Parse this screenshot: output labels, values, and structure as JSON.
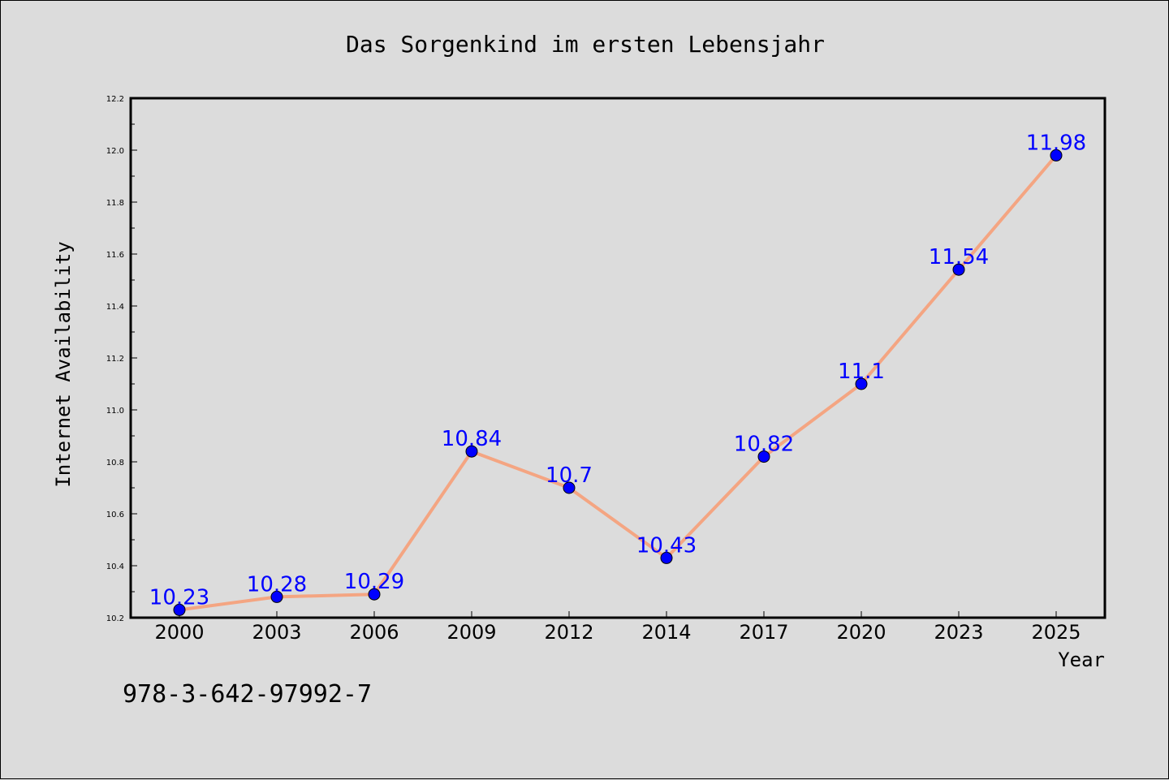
{
  "colors": {
    "background": "#dcdcdc",
    "line": "#f4a582",
    "marker": "#0000ff",
    "data_label": "#0000ff",
    "axis": "#000000"
  },
  "footer_text": "978-3-642-97992-7",
  "chart_data": {
    "type": "line",
    "title": "Das Sorgenkind im ersten Lebensjahr",
    "xlabel": "Year",
    "ylabel": "Internet Availability",
    "categories": [
      "2000",
      "2003",
      "2006",
      "2009",
      "2012",
      "2014",
      "2017",
      "2020",
      "2023",
      "2025"
    ],
    "series": [
      {
        "values": [
          10.23,
          10.28,
          10.29,
          10.84,
          10.7,
          10.43,
          10.82,
          11.1,
          11.54,
          11.98
        ],
        "data_labels": [
          "10.23",
          "10.28",
          "10.29",
          "10.84",
          "10.7",
          "10.43",
          "10.82",
          "11.1",
          "11.54",
          "11.98"
        ]
      }
    ],
    "ylim": [
      10.2,
      12.2
    ],
    "yticks": [
      "10.2",
      "10.4",
      "10.6",
      "10.8",
      "11.0",
      "11.2",
      "11.4",
      "11.6",
      "11.8",
      "12.0",
      "12.2"
    ],
    "grid": false,
    "legend": "none"
  }
}
